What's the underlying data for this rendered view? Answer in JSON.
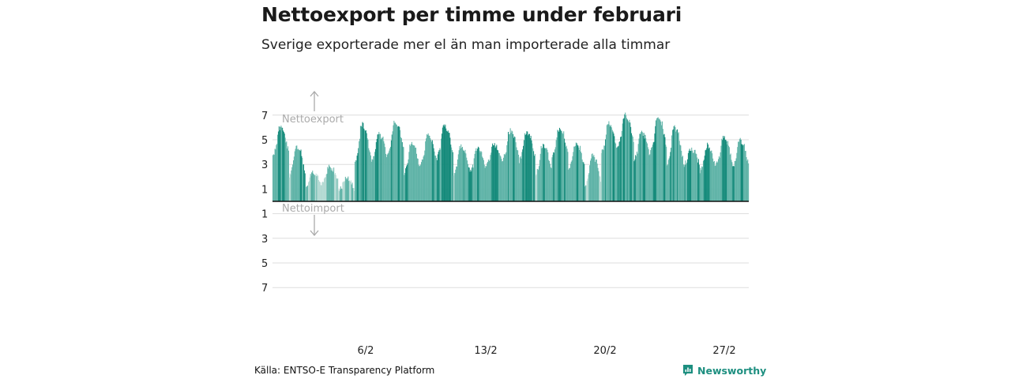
{
  "title": "Nettoexport per timme under februari",
  "subtitle": "Sverige exporterade mer el än man importerade alla timmar",
  "source": "Källa: ENTSO-E Transparency Platform",
  "brand": "Newsworthy",
  "colors": {
    "bar_dark": "#148a7a",
    "bar_mid": "#5fb3a7",
    "bar_light": "#b3d9d2",
    "grid": "#dddddd",
    "zero_line": "#111111",
    "annotation": "#aaaaaa",
    "brand": "#1d8f80"
  },
  "chart_data": {
    "type": "bar",
    "x_unit": "hour",
    "x_start": "2020-02-01",
    "x_end": "2020-02-29",
    "xticks": [
      "6/2",
      "13/2",
      "20/2",
      "27/2"
    ],
    "yticks_top": [
      "7",
      "5",
      "3",
      "1"
    ],
    "yticks_bottom": [
      "1",
      "3",
      "5",
      "7"
    ],
    "ylim": [
      -8,
      8
    ],
    "annotation_up": "Nettoexport",
    "annotation_down": "Nettoimport",
    "daily_peaks": [
      6.2,
      4.6,
      2.5,
      2.9,
      2.0,
      6.5,
      5.6,
      6.7,
      4.9,
      5.6,
      6.4,
      4.6,
      4.5,
      4.8,
      5.9,
      5.8,
      4.8,
      6.1,
      4.9,
      3.9,
      6.5,
      7.2,
      5.8,
      7.0,
      6.3,
      4.4,
      4.7,
      5.4,
      5.2
    ],
    "daily_troughs": [
      3.2,
      1.6,
      0.9,
      1.2,
      0.6,
      2.5,
      2.8,
      3.5,
      1.8,
      2.5,
      3.0,
      1.8,
      1.9,
      2.5,
      3.0,
      2.8,
      1.6,
      3.2,
      2.0,
      0.7,
      3.4,
      4.0,
      2.8,
      3.5,
      2.4,
      2.6,
      2.0,
      2.5,
      2.2
    ]
  }
}
